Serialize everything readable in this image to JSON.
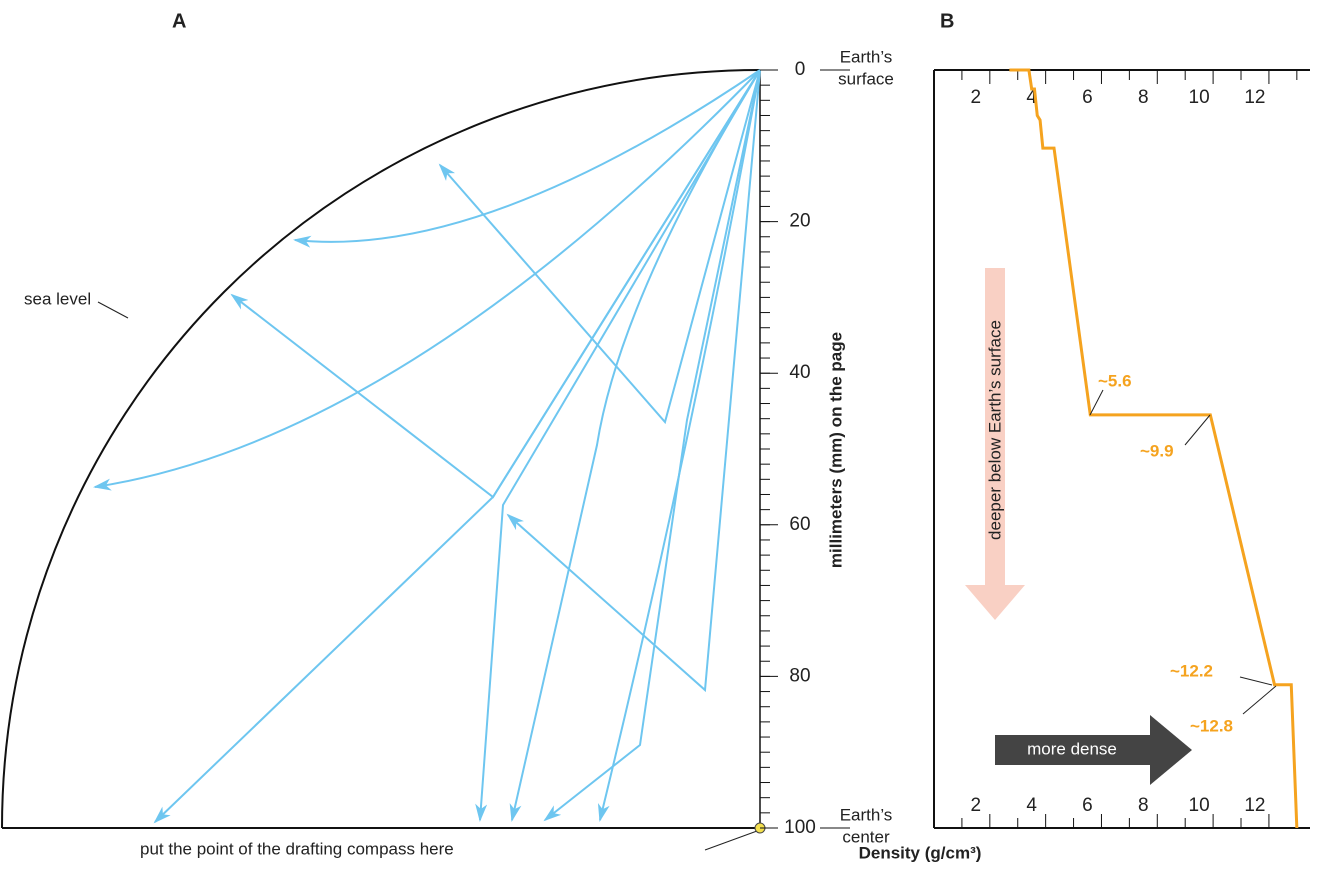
{
  "chart_data": [
    {
      "type": "diagram",
      "label": "A",
      "ylim": [
        0,
        100
      ],
      "yticks": [
        0,
        20,
        40,
        60,
        80,
        100
      ],
      "yminorticks": [
        0,
        2,
        4,
        6,
        8,
        10,
        12,
        14,
        16,
        18,
        20,
        22,
        24,
        26,
        28,
        30,
        32,
        34,
        36,
        38,
        40,
        42,
        44,
        46,
        48,
        50,
        52,
        54,
        56,
        58,
        60,
        62,
        64,
        66,
        68,
        70,
        72,
        74,
        76,
        78,
        80,
        82,
        84,
        86,
        88,
        90,
        92,
        94,
        96,
        98,
        100
      ],
      "ylabel": "millimeters (mm) on the page",
      "annotations": [
        "sea level",
        "put the point of the drafting compass here"
      ]
    },
    {
      "type": "line",
      "label": "B",
      "x": [
        2.7,
        3.4,
        3.5,
        3.6,
        3.7,
        3.8,
        3.9,
        4.3,
        5.6,
        9.9,
        12.2,
        12.8,
        13.0
      ],
      "values": [
        0,
        0,
        2.5,
        2.5,
        6,
        6.6,
        10.3,
        10.3,
        45.5,
        45.5,
        81.1,
        81.1,
        100
      ],
      "color": "#f5a31f",
      "xlim": [
        0,
        13.4
      ],
      "xticks": [
        2,
        4,
        6,
        8,
        10,
        12
      ],
      "xminorticks": [
        1,
        3,
        5,
        7,
        9,
        11,
        13
      ],
      "ylim": [
        0,
        100
      ],
      "xlabel": "Density (g/cm³)",
      "top_label": [
        "Earth’s",
        "surface"
      ],
      "bottom_label": [
        "Earth’s",
        "center"
      ],
      "callouts": [
        "~5.6",
        "~9.9",
        "~12.2",
        "~12.8"
      ],
      "arrows": [
        "deeper below Earth’s surface",
        "more dense"
      ]
    }
  ]
}
